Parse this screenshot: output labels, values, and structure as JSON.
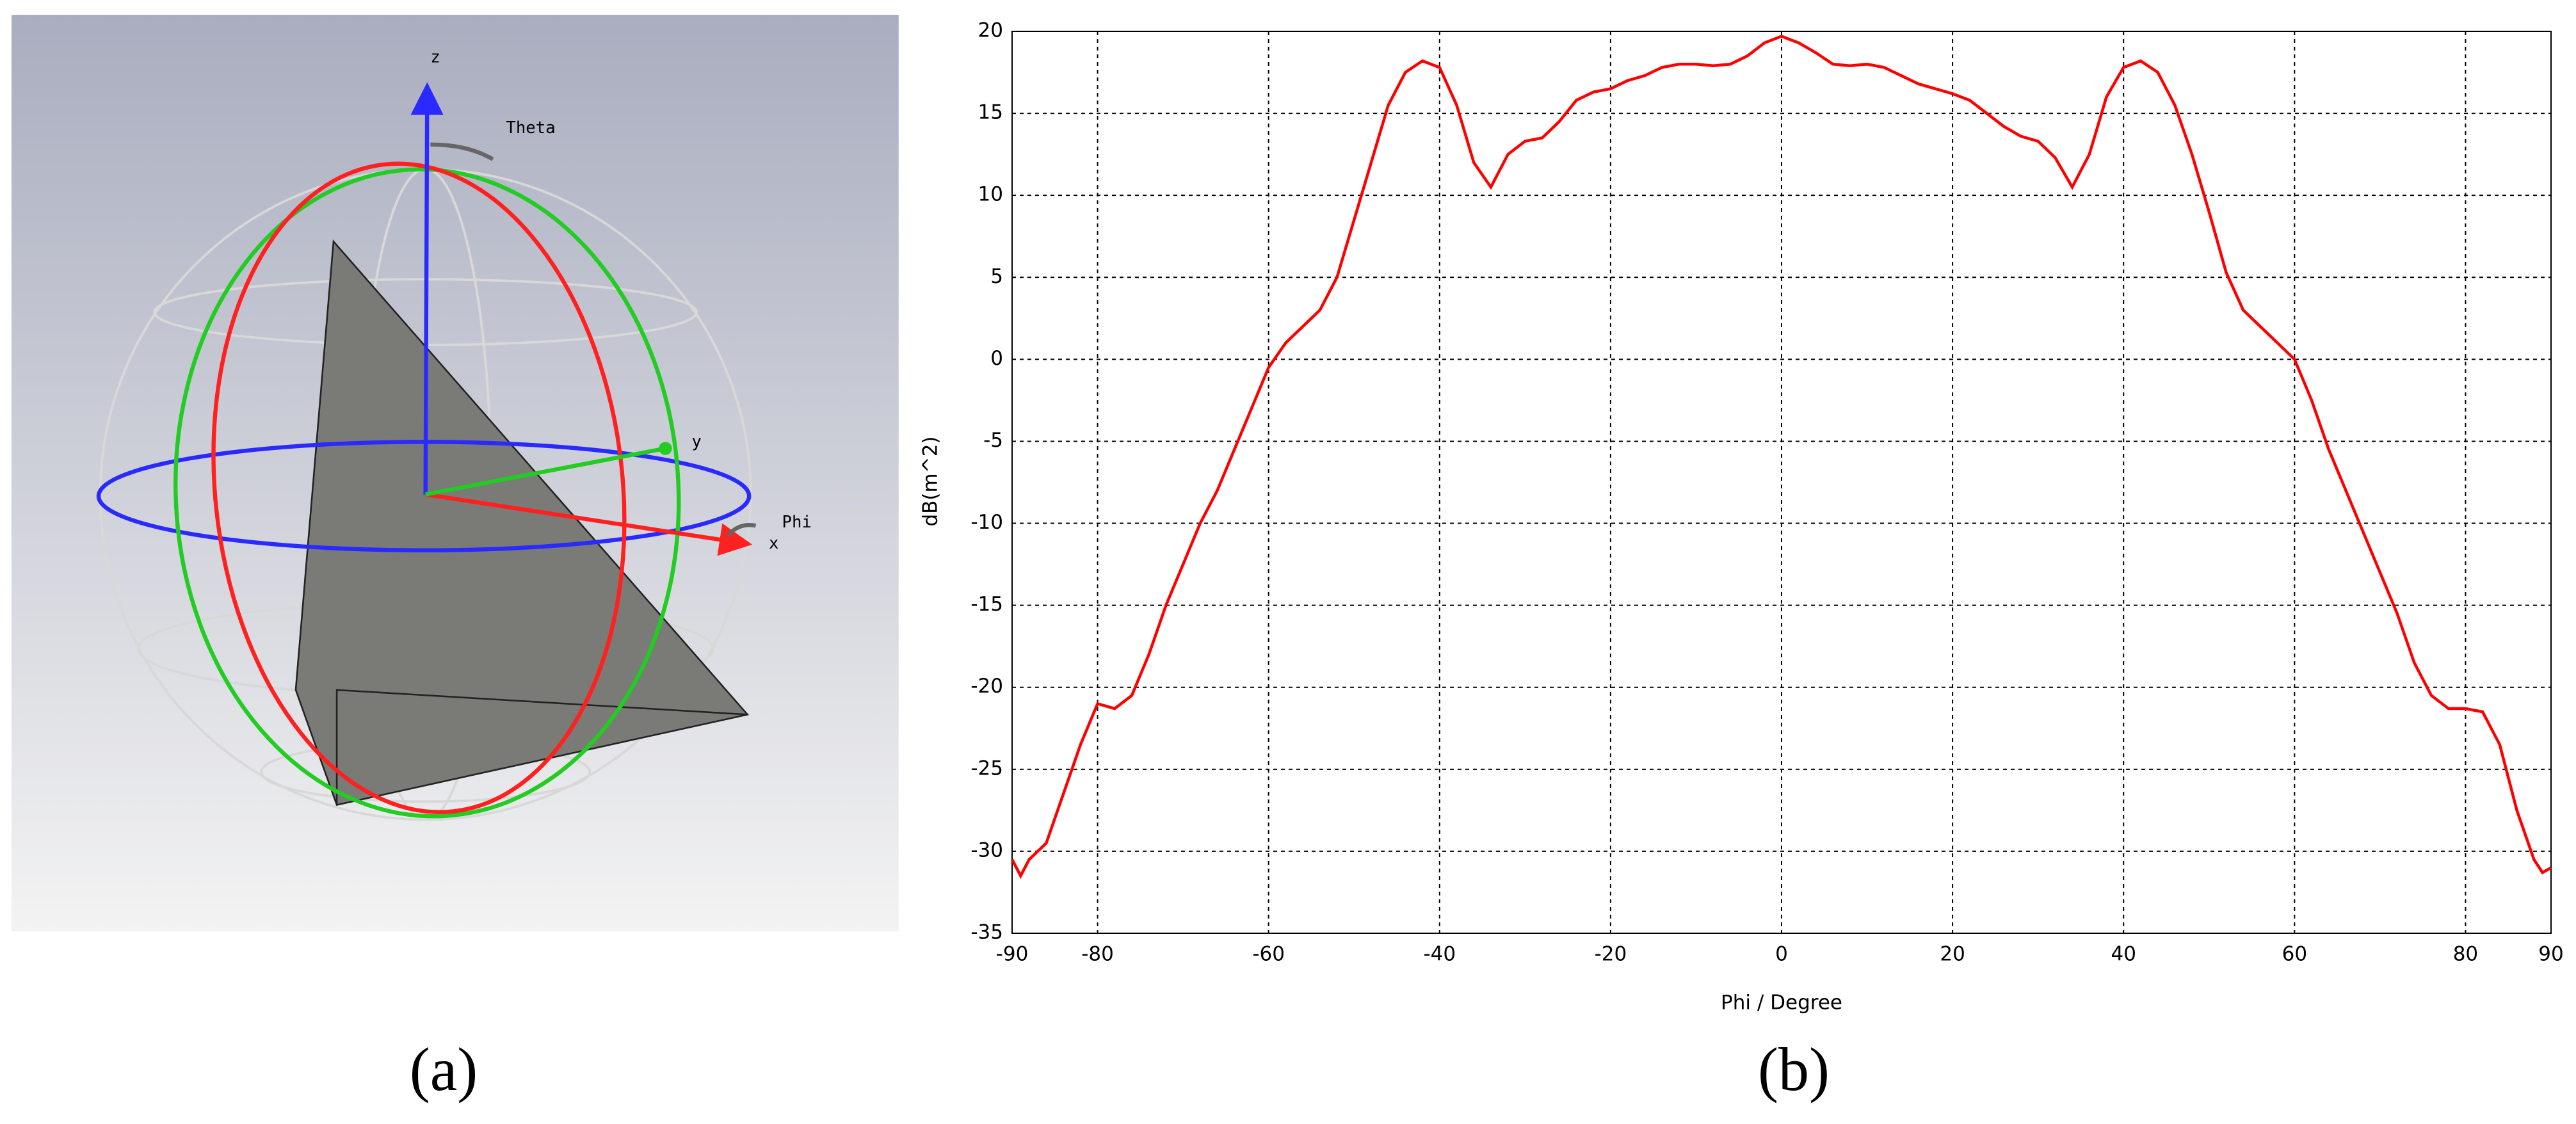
{
  "panel_a": {
    "axis_labels": [
      "z",
      "Theta",
      "y",
      "Phi",
      "x"
    ],
    "caption": "(a)"
  },
  "chart_data": {
    "type": "line",
    "caption": "(b)",
    "xlabel": "Phi / Degree",
    "ylabel": "dB(m^2)",
    "x": [
      -90,
      -89,
      -88,
      -86,
      -84,
      -82,
      -80,
      -78,
      -76,
      -74,
      -72,
      -70,
      -68,
      -66,
      -64,
      -62,
      -60,
      -58,
      -56,
      -54,
      -52,
      -50,
      -48,
      -46,
      -44,
      -42,
      -40,
      -38,
      -36,
      -34,
      -32,
      -30,
      -28,
      -26,
      -24,
      -22,
      -20,
      -18,
      -16,
      -14,
      -12,
      -10,
      -8,
      -6,
      -4,
      -2,
      0,
      2,
      4,
      6,
      8,
      10,
      12,
      14,
      16,
      18,
      20,
      22,
      24,
      26,
      28,
      30,
      32,
      34,
      36,
      38,
      40,
      42,
      44,
      46,
      48,
      50,
      52,
      54,
      56,
      58,
      60,
      62,
      64,
      66,
      68,
      70,
      72,
      74,
      76,
      78,
      80,
      82,
      84,
      86,
      88,
      89,
      90
    ],
    "values": [
      -30.5,
      -31.5,
      -30.5,
      -29.5,
      -26.5,
      -23.5,
      -21,
      -21.3,
      -20.5,
      -18,
      -15,
      -12.5,
      -10,
      -8,
      -5.5,
      -3,
      -0.5,
      1,
      2,
      3,
      5,
      8.5,
      12,
      15.5,
      17.5,
      18.2,
      17.8,
      15.5,
      12,
      10.5,
      12.5,
      13.3,
      13.5,
      14.5,
      15.8,
      16.3,
      16.5,
      17,
      17.3,
      17.8,
      18,
      18,
      17.9,
      18,
      18.5,
      19.3,
      19.7,
      19.3,
      18.7,
      18,
      17.9,
      18,
      17.8,
      17.3,
      16.8,
      16.5,
      16.2,
      15.8,
      15,
      14.2,
      13.6,
      13.3,
      12.3,
      10.5,
      12.5,
      16,
      17.8,
      18.2,
      17.5,
      15.5,
      12.5,
      9,
      5.3,
      3,
      2,
      1,
      0,
      -2.5,
      -5.5,
      -8,
      -10.5,
      -13,
      -15.5,
      -18.5,
      -20.5,
      -21.3,
      -21.3,
      -21.5,
      -23.5,
      -27.5,
      -30.5,
      -31.3,
      -31
    ],
    "color": "#ff0000",
    "xlim": [
      -90,
      90
    ],
    "ylim": [
      -35,
      20
    ],
    "xticks": [
      -90,
      -80,
      -60,
      -40,
      -20,
      0,
      20,
      40,
      60,
      80,
      90
    ],
    "yticks": [
      -35,
      -30,
      -25,
      -20,
      -15,
      -10,
      -5,
      0,
      5,
      10,
      15,
      20
    ],
    "grid": true
  }
}
